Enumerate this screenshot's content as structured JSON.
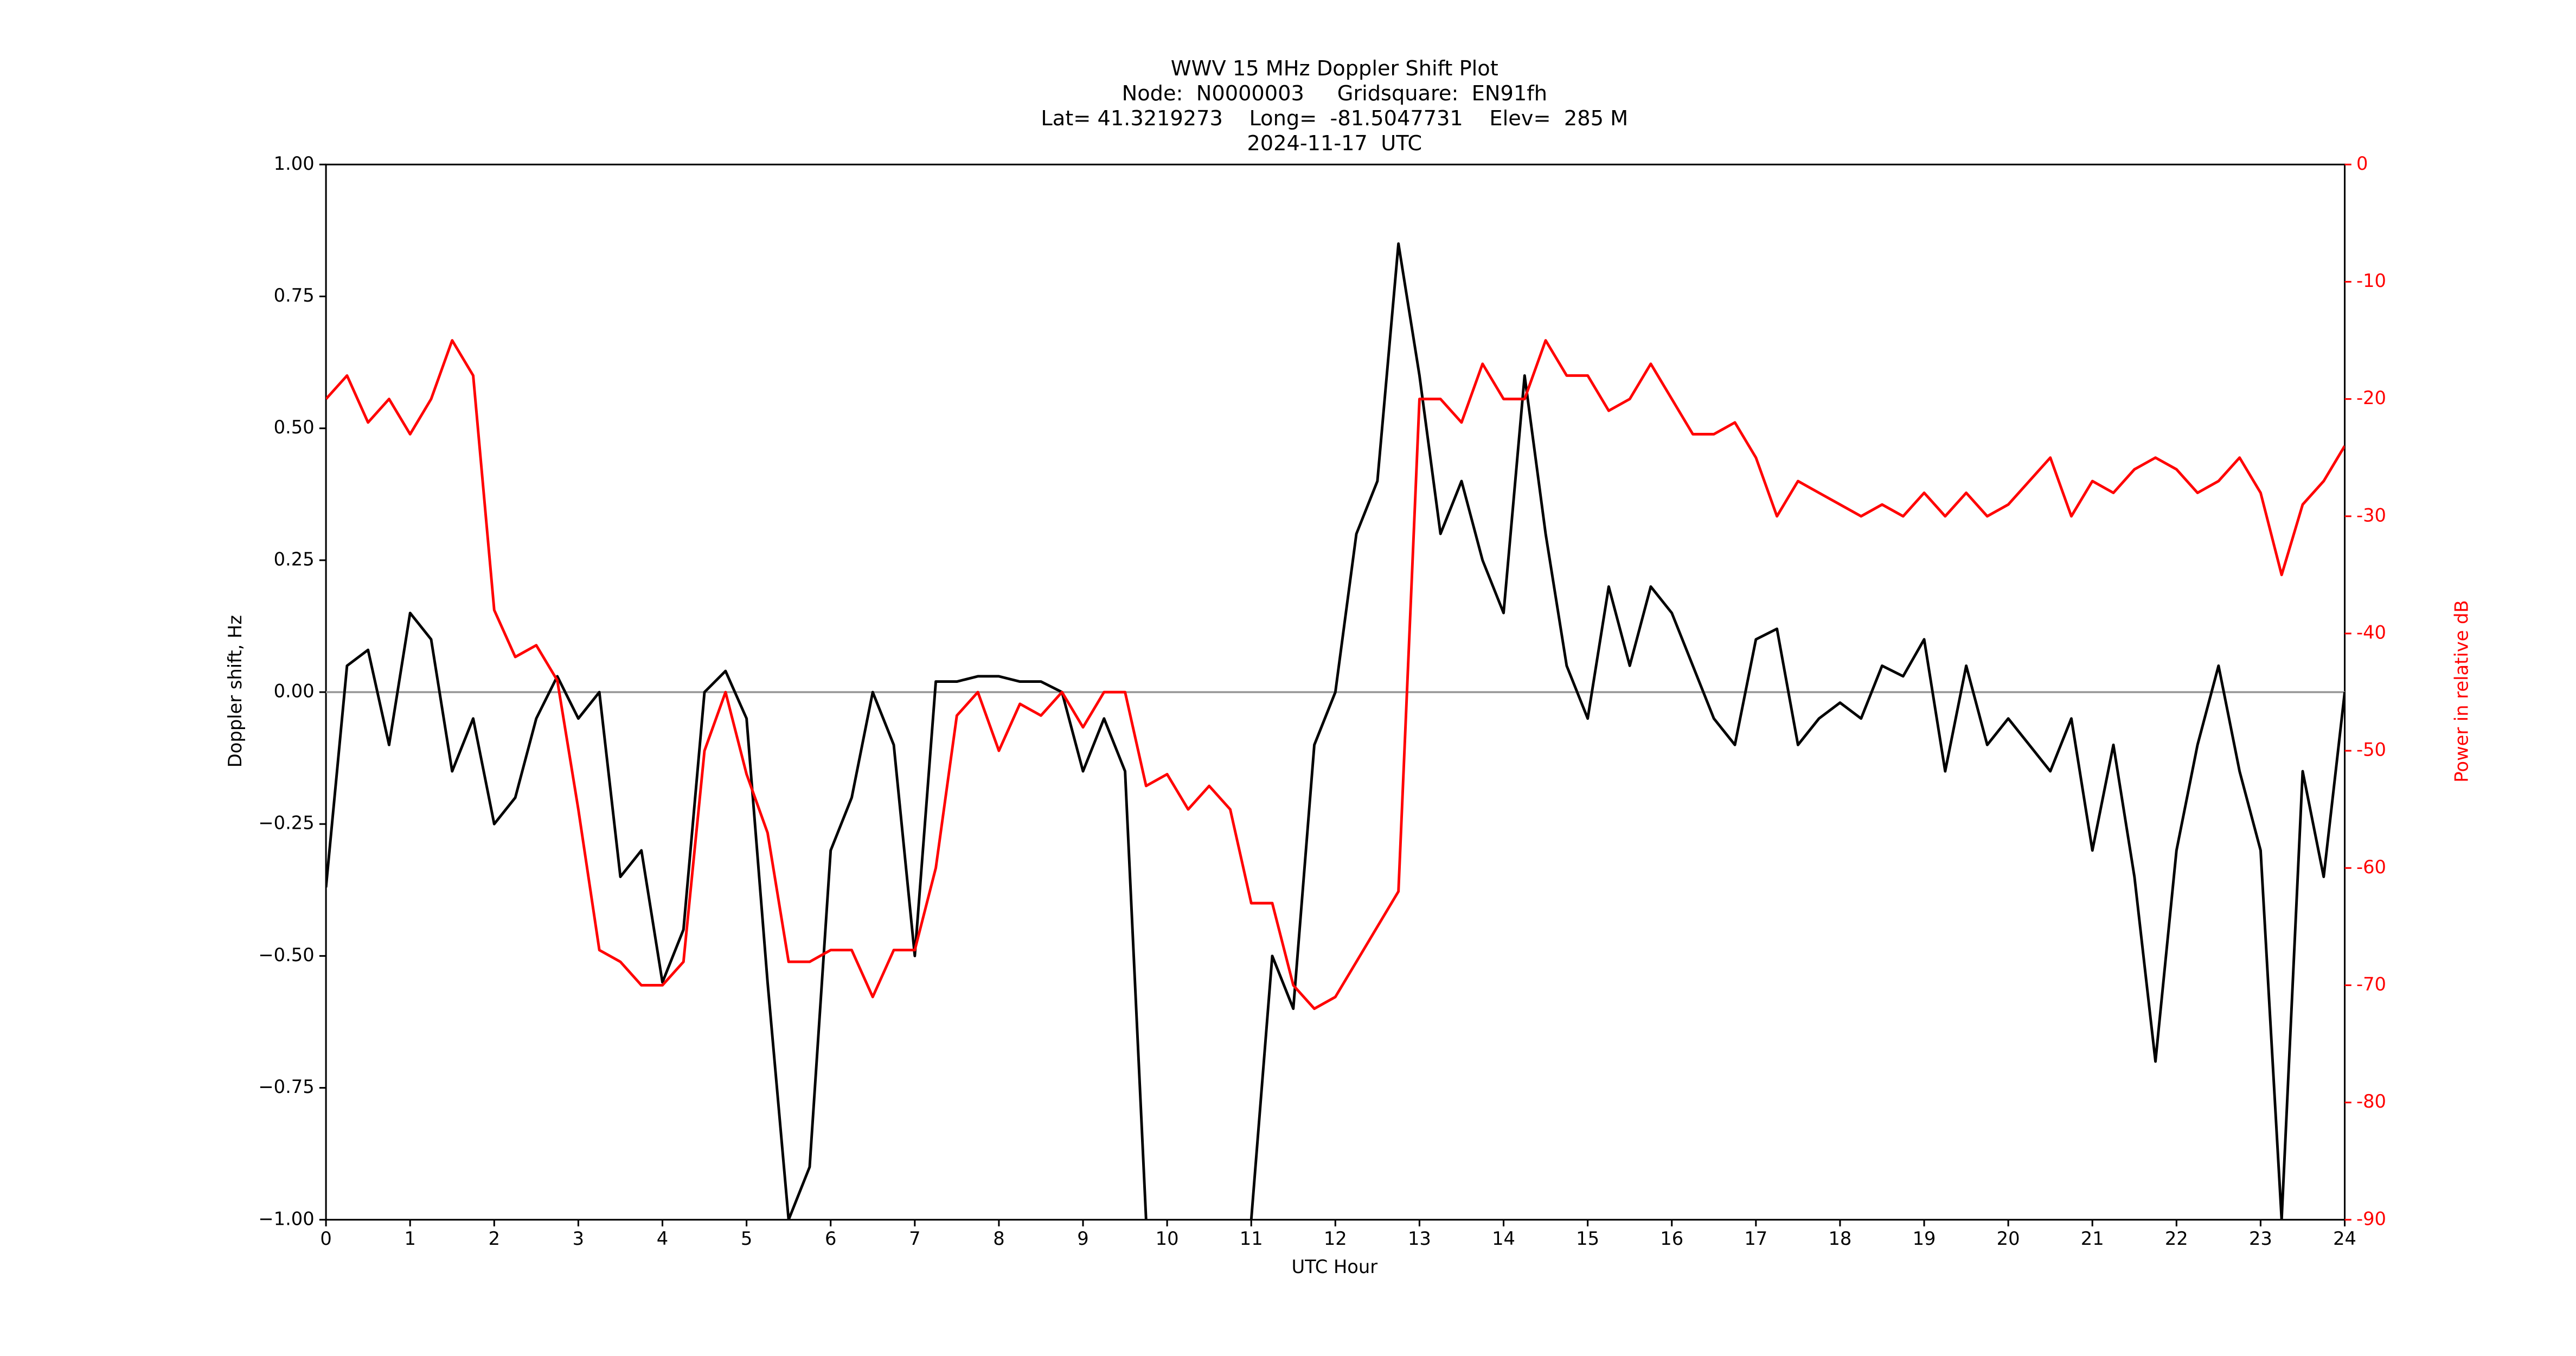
{
  "chart_data": {
    "type": "line",
    "title": "WWV 15 MHz Doppler Shift Plot",
    "subtitle": [
      "Node:  N0000003     Gridsquare:  EN91fh",
      "Lat= 41.3219273    Long=  -81.5047731    Elev=  285 M",
      "2024-11-17  UTC"
    ],
    "x_label": "UTC Hour",
    "y_label": "Doppler shift, Hz",
    "y2_label": "Power in relative dB",
    "x": [
      0,
      0.25,
      0.5,
      0.75,
      1,
      1.25,
      1.5,
      1.75,
      2,
      2.25,
      2.5,
      2.75,
      3,
      3.25,
      3.5,
      3.75,
      4,
      4.25,
      4.5,
      4.75,
      5,
      5.25,
      5.5,
      5.75,
      6,
      6.25,
      6.5,
      6.75,
      7,
      7.25,
      7.5,
      7.75,
      8,
      8.25,
      8.5,
      8.75,
      9,
      9.25,
      9.5,
      9.75,
      10,
      10.25,
      10.5,
      10.75,
      11,
      11.25,
      11.5,
      11.75,
      12,
      12.25,
      12.5,
      12.75,
      13,
      13.25,
      13.5,
      13.75,
      14,
      14.25,
      14.5,
      14.75,
      15,
      15.25,
      15.5,
      15.75,
      16,
      16.25,
      16.5,
      16.75,
      17,
      17.25,
      17.5,
      17.75,
      18,
      18.25,
      18.5,
      18.75,
      19,
      19.25,
      19.5,
      19.75,
      20,
      20.25,
      20.5,
      20.75,
      21,
      21.25,
      21.5,
      21.75,
      22,
      22.25,
      22.5,
      22.75,
      23,
      23.25,
      23.5,
      23.75,
      24
    ],
    "series": [
      {
        "name": "Doppler shift",
        "color": "#000000",
        "axis": "y",
        "values": [
          -0.37,
          0.05,
          0.08,
          -0.1,
          0.15,
          0.1,
          -0.15,
          -0.05,
          -0.25,
          -0.2,
          -0.05,
          0.03,
          -0.05,
          0.0,
          -0.35,
          -0.3,
          -0.55,
          -0.45,
          0.0,
          0.04,
          -0.05,
          -0.55,
          -1.0,
          -0.9,
          -0.3,
          -0.2,
          0.0,
          -0.1,
          -0.5,
          0.02,
          0.02,
          0.03,
          0.03,
          0.02,
          0.02,
          0.0,
          -0.15,
          -0.05,
          -0.15,
          -1.0,
          null,
          null,
          null,
          null,
          -1.0,
          -0.5,
          -0.6,
          -0.1,
          0.0,
          0.3,
          0.4,
          0.85,
          0.6,
          0.3,
          0.4,
          0.25,
          0.15,
          0.6,
          0.3,
          0.05,
          -0.05,
          0.2,
          0.05,
          0.2,
          0.15,
          0.05,
          -0.05,
          -0.1,
          0.1,
          0.12,
          -0.1,
          -0.05,
          -0.02,
          -0.05,
          0.05,
          0.03,
          0.1,
          -0.15,
          0.05,
          -0.1,
          -0.05,
          -0.1,
          -0.15,
          -0.05,
          -0.3,
          -0.1,
          -0.35,
          -0.7,
          -0.3,
          -0.1,
          0.05,
          -0.15,
          -0.3,
          -1.0,
          -0.15,
          -0.35,
          0.0
        ]
      },
      {
        "name": "Power",
        "color": "#ff0000",
        "axis": "y2",
        "values": [
          -20,
          -18,
          -22,
          -20,
          -23,
          -20,
          -15,
          -18,
          -38,
          -42,
          -41,
          -44,
          -55,
          -67,
          -68,
          -70,
          -70,
          -68,
          -50,
          -45,
          -52,
          -57,
          -68,
          -68,
          -67,
          -67,
          -71,
          -67,
          -67,
          -60,
          -47,
          -45,
          -50,
          -46,
          -47,
          -45,
          -48,
          -45,
          -45,
          -53,
          -52,
          -55,
          -53,
          -55,
          -63,
          -63,
          -70,
          -72,
          -71,
          -68,
          -65,
          -62,
          -20,
          -20,
          -22,
          -17,
          -20,
          -20,
          -15,
          -18,
          -18,
          -21,
          -20,
          -17,
          -20,
          -23,
          -23,
          -22,
          -25,
          -30,
          -27,
          -28,
          -29,
          -30,
          -29,
          -30,
          -28,
          -30,
          -28,
          -30,
          -29,
          -27,
          -25,
          -30,
          -27,
          -28,
          -26,
          -25,
          -26,
          -28,
          -27,
          -25,
          -28,
          -35,
          -29,
          -27,
          -24
        ]
      }
    ],
    "xlim": [
      0,
      24
    ],
    "xticks": [
      0,
      1,
      2,
      3,
      4,
      5,
      6,
      7,
      8,
      9,
      10,
      11,
      12,
      13,
      14,
      15,
      16,
      17,
      18,
      19,
      20,
      21,
      22,
      23,
      24
    ],
    "ylim": [
      -1,
      1
    ],
    "yticks": [
      {
        "value": -1,
        "label": "−1.00"
      },
      {
        "value": -0.75,
        "label": "−0.75"
      },
      {
        "value": -0.5,
        "label": "−0.50"
      },
      {
        "value": -0.25,
        "label": "−0.25"
      },
      {
        "value": 0,
        "label": "0.00"
      },
      {
        "value": 0.25,
        "label": "0.25"
      },
      {
        "value": 0.5,
        "label": "0.50"
      },
      {
        "value": 0.75,
        "label": "0.75"
      },
      {
        "value": 1,
        "label": "1.00"
      }
    ],
    "y2lim": [
      -90,
      0
    ],
    "y2ticks": [
      -90,
      -80,
      -70,
      -60,
      -50,
      -40,
      -30,
      -20,
      -10,
      0
    ],
    "y2_color": "#ff0000",
    "reference_line": 0
  }
}
